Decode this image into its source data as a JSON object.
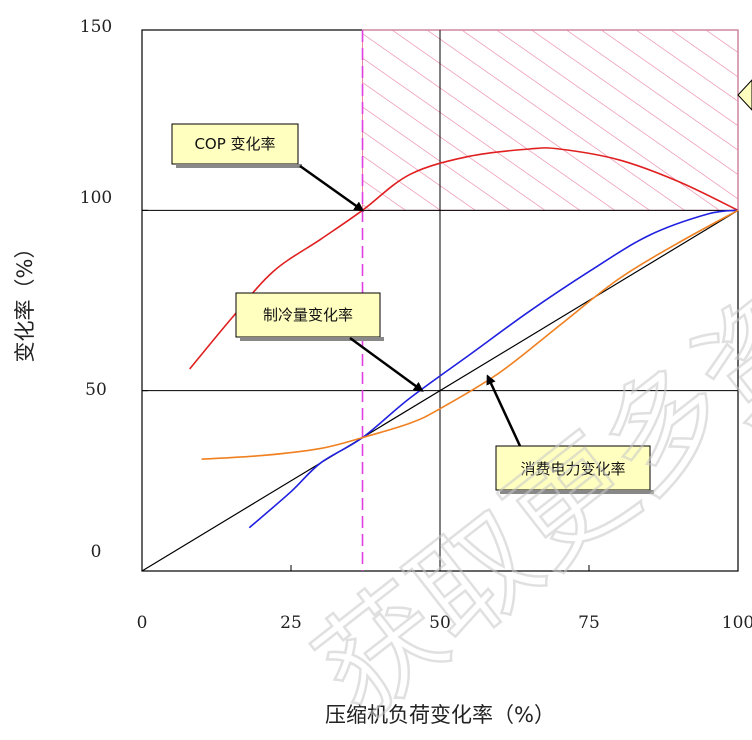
{
  "chart_data": {
    "type": "line",
    "title": "",
    "xlabel": "压缩机负荷变化率（%）",
    "ylabel": "变化率（%）",
    "xlim": [
      0,
      100
    ],
    "ylim": [
      0,
      150
    ],
    "x_ticks": [
      "0",
      "25",
      "50",
      "75",
      "100"
    ],
    "y_ticks": [
      "0",
      "50",
      "100",
      "150"
    ],
    "grid": "lines at x=50, y=50, y=100",
    "reference_line": {
      "x": [
        0,
        100
      ],
      "y": [
        0,
        100
      ],
      "color": "#000000"
    },
    "vertical_dashed_line": {
      "x": 37,
      "color": "#e040e0"
    },
    "hatched_region": {
      "x": [
        37,
        100
      ],
      "y": [
        100,
        150
      ],
      "color": "#e87fa0"
    },
    "series": [
      {
        "color": "#e02020",
        "x": [
          8,
          15,
          22,
          30,
          37,
          45,
          55,
          65,
          70,
          80,
          90,
          100
        ],
        "y": [
          56,
          70,
          83,
          92,
          100,
          110,
          115,
          117,
          117,
          114,
          108,
          100
        ]
      },
      {
        "color": "#2020e0",
        "x": [
          18,
          25,
          30,
          37,
          45,
          55,
          65,
          75,
          85,
          95,
          100
        ],
        "y": [
          12,
          22,
          30,
          37,
          48,
          60,
          72,
          83,
          93,
          99,
          100
        ]
      },
      {
        "color": "#f08020",
        "x": [
          10,
          20,
          30,
          37,
          45,
          50,
          60,
          70,
          80,
          90,
          100
        ],
        "y": [
          31,
          32,
          34,
          37,
          41,
          45,
          55,
          68,
          81,
          91,
          100
        ]
      }
    ],
    "annotations": [
      {
        "text": "COP 变化率",
        "target": [
          37,
          100
        ]
      },
      {
        "text": "制冷量变化率",
        "target": [
          47,
          50
        ]
      },
      {
        "text": "消费电力变化率",
        "target": [
          58,
          54
        ]
      }
    ]
  },
  "watermark": "获取更多资"
}
